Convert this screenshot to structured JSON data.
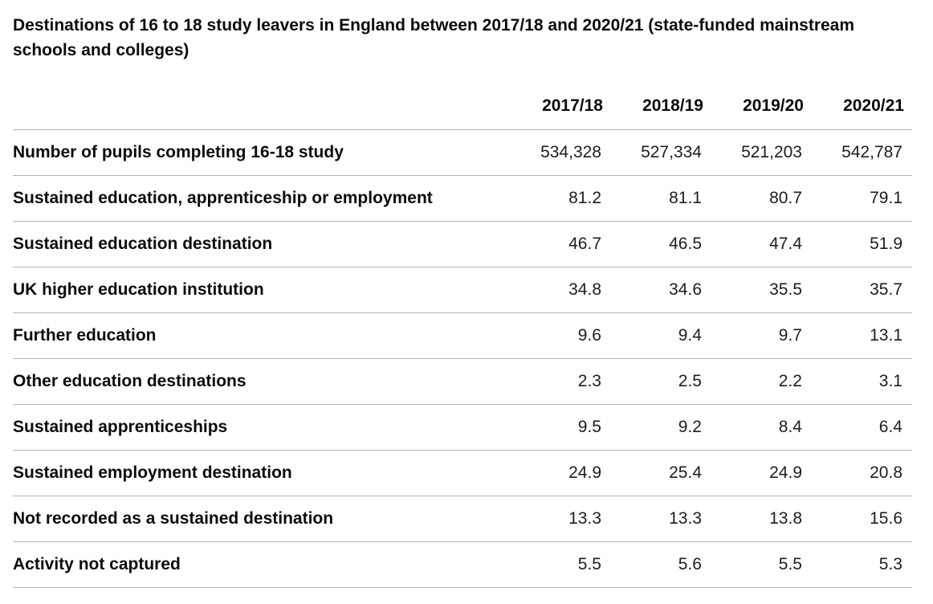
{
  "table": {
    "caption": "Destinations of 16 to 18 study leavers in England between 2017/18 and 2020/21 (state-funded mainstream schools and colleges)",
    "columns": [
      "2017/18",
      "2018/19",
      "2019/20",
      "2020/21"
    ],
    "rows": [
      {
        "label": "Number of pupils completing 16-18 study",
        "values": [
          "534,328",
          "527,334",
          "521,203",
          "542,787"
        ]
      },
      {
        "label": "Sustained education, apprenticeship or employment",
        "values": [
          "81.2",
          "81.1",
          "80.7",
          "79.1"
        ]
      },
      {
        "label": "Sustained education destination",
        "values": [
          "46.7",
          "46.5",
          "47.4",
          "51.9"
        ]
      },
      {
        "label": "UK higher education institution",
        "values": [
          "34.8",
          "34.6",
          "35.5",
          "35.7"
        ]
      },
      {
        "label": "Further education",
        "values": [
          "9.6",
          "9.4",
          "9.7",
          "13.1"
        ]
      },
      {
        "label": "Other education destinations",
        "values": [
          "2.3",
          "2.5",
          "2.2",
          "3.1"
        ]
      },
      {
        "label": "Sustained apprenticeships",
        "values": [
          "9.5",
          "9.2",
          "8.4",
          "6.4"
        ]
      },
      {
        "label": "Sustained employment destination",
        "values": [
          "24.9",
          "25.4",
          "24.9",
          "20.8"
        ]
      },
      {
        "label": "Not recorded as a sustained destination",
        "values": [
          "13.3",
          "13.3",
          "13.8",
          "15.6"
        ]
      },
      {
        "label": "Activity not captured",
        "values": [
          "5.5",
          "5.6",
          "5.5",
          "5.3"
        ]
      }
    ]
  }
}
